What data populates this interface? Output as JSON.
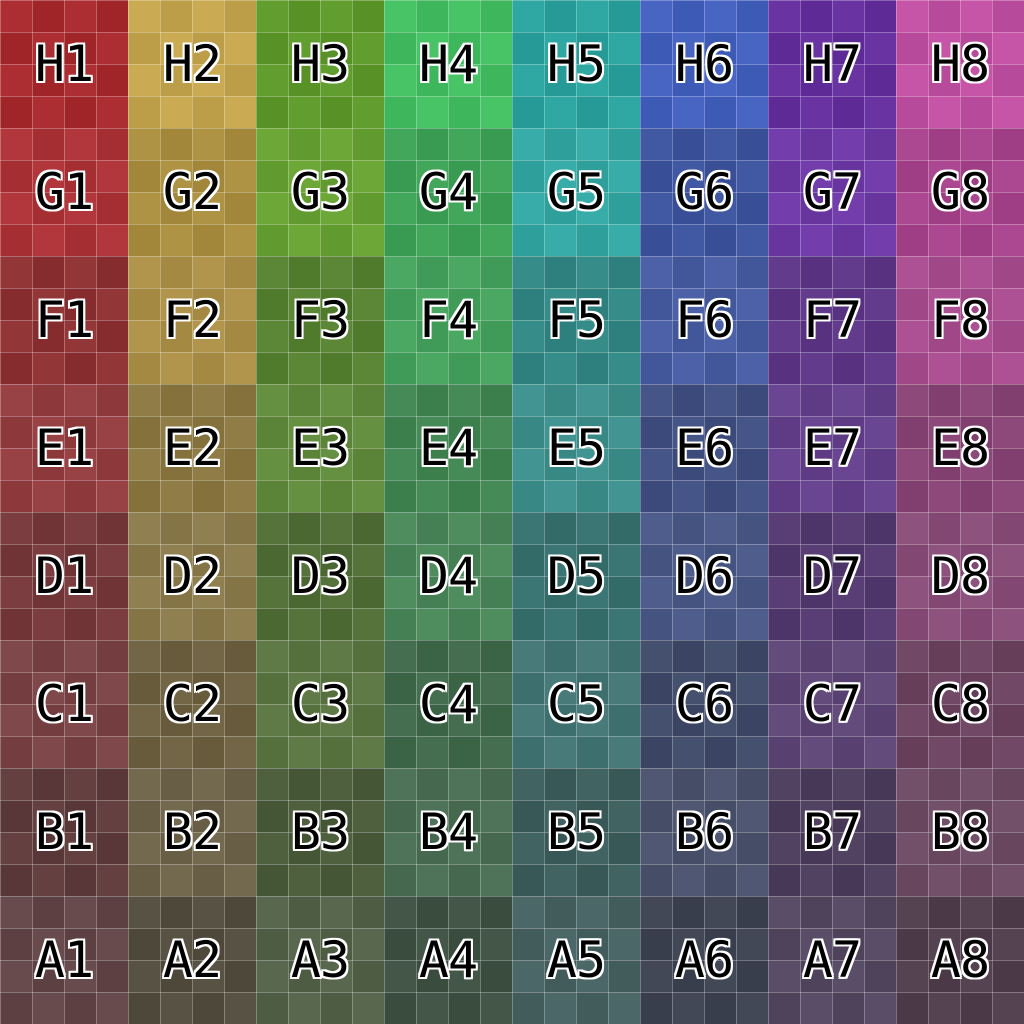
{
  "rows": [
    "H",
    "G",
    "F",
    "E",
    "D",
    "C",
    "B",
    "A"
  ],
  "columns": [
    "1",
    "2",
    "3",
    "4",
    "5",
    "6",
    "7",
    "8"
  ],
  "column_colors": [
    "#b3292d",
    "#c4a040",
    "#62a22a",
    "#3cbb5c",
    "#2aaba6",
    "#3c58b8",
    "#6a30a8",
    "#c0449e"
  ],
  "labels": [
    [
      "H1",
      "H2",
      "H3",
      "H4",
      "H5",
      "H6",
      "H7",
      "H8"
    ],
    [
      "G1",
      "G2",
      "G3",
      "G4",
      "G5",
      "G6",
      "G7",
      "G8"
    ],
    [
      "F1",
      "F2",
      "F3",
      "F4",
      "F5",
      "F6",
      "F7",
      "F8"
    ],
    [
      "E1",
      "E2",
      "E3",
      "E4",
      "E5",
      "E6",
      "E7",
      "E8"
    ],
    [
      "D1",
      "D2",
      "D3",
      "D4",
      "D5",
      "D6",
      "D7",
      "D8"
    ],
    [
      "C1",
      "C2",
      "C3",
      "C4",
      "C5",
      "C6",
      "C7",
      "C8"
    ],
    [
      "B1",
      "B2",
      "B3",
      "B4",
      "B5",
      "B6",
      "B7",
      "B8"
    ],
    [
      "A1",
      "A2",
      "A3",
      "A4",
      "A5",
      "A6",
      "A7",
      "A8"
    ]
  ]
}
